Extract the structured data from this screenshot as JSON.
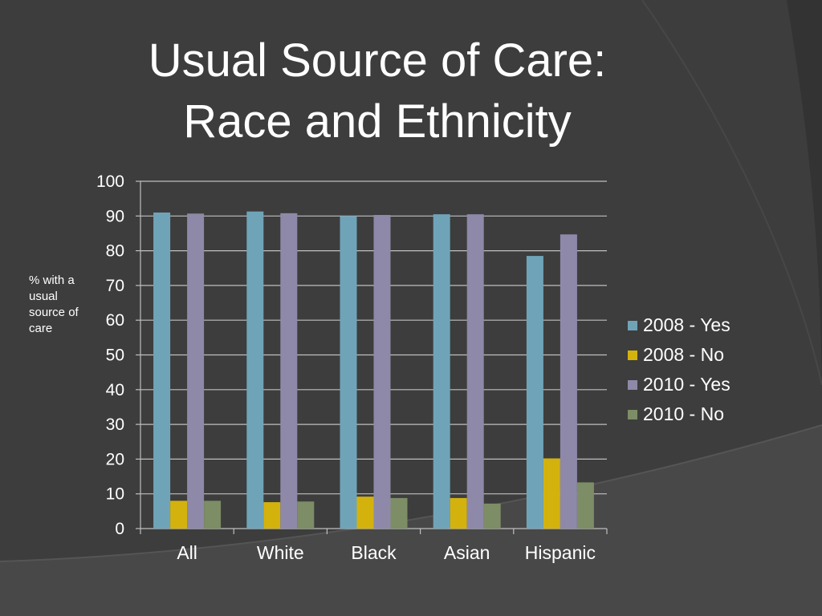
{
  "title_line1": "Usual Source of Care:",
  "title_line2": "Race and Ethnicity",
  "colors": {
    "background": "#3a3a3a",
    "grid": "#bfbfbf",
    "text": "#ffffff"
  },
  "chart_data": {
    "type": "bar",
    "title": "Usual Source of Care: Race and Ethnicity",
    "ylabel": "% with a usual source of care",
    "xlabel": "",
    "ylim": [
      0,
      100
    ],
    "yticks": [
      "0",
      "10",
      "20",
      "30",
      "40",
      "50",
      "60",
      "70",
      "80",
      "90",
      "100"
    ],
    "grid": true,
    "legend_position": "right",
    "categories": [
      "All",
      "White",
      "Black",
      "Asian",
      "Hispanic"
    ],
    "series": [
      {
        "name": "2008 - Yes",
        "color": "#6fa4b8",
        "values": [
          91,
          91.3,
          90,
          90.5,
          78.5
        ]
      },
      {
        "name": "2008 - No",
        "color": "#d4b20e",
        "values": [
          8,
          7.6,
          9.2,
          8.8,
          20.2
        ]
      },
      {
        "name": "2010 - Yes",
        "color": "#8e89a8",
        "values": [
          90.7,
          90.8,
          90.3,
          90.5,
          84.7
        ]
      },
      {
        "name": "2010 - No",
        "color": "#7d8d66",
        "values": [
          8,
          7.8,
          8.8,
          7.2,
          13.3
        ]
      }
    ]
  }
}
